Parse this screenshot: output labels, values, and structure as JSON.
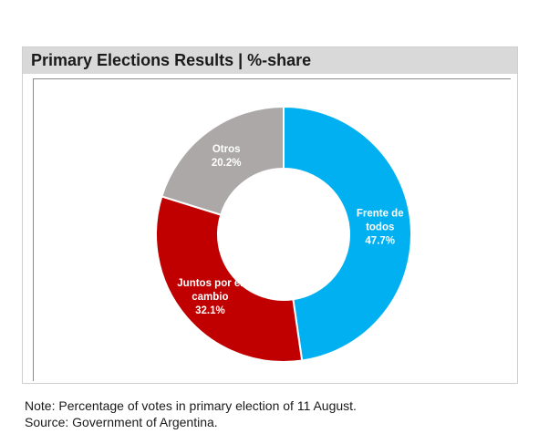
{
  "chart_data": {
    "type": "pie",
    "donut": true,
    "title": "Primary Elections Results | %-share",
    "categories": [
      "Frente de todos",
      "Juntos por el cambio",
      "Otros"
    ],
    "values": [
      47.7,
      32.1,
      20.2
    ],
    "value_labels": [
      "47.7%",
      "32.1%",
      "20.2%"
    ],
    "label_lines": [
      [
        "Frente de",
        "todos"
      ],
      [
        "Juntos por el",
        "cambio"
      ],
      [
        "Otros"
      ]
    ],
    "colors": [
      "#00b0f0",
      "#c00000",
      "#aba8a7"
    ],
    "label_color": "#ffffff",
    "legend": "none"
  },
  "notes": {
    "line1": "Note: Percentage of votes in primary election of 11 August.",
    "line2": "Source: Government of Argentina."
  }
}
